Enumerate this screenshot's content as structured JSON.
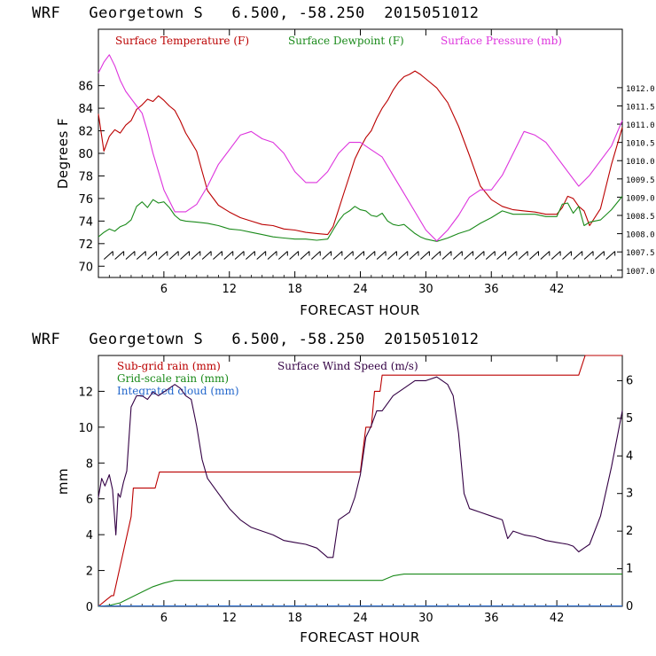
{
  "colors": {
    "temperature": "#bb0000",
    "dewpoint": "#1a8a1a",
    "pressure": "#dd33dd",
    "subgrid_rain": "#bb0000",
    "gridscale_rain": "#1a8a1a",
    "integrated_cloud": "#2266cc",
    "wind_speed": "#330044",
    "wind_barbs": "#000000"
  },
  "chart_data": [
    {
      "type": "line",
      "title": "WRF   Georgetown S   6.500, -58.250  2015051012",
      "xlabel": "FORECAST HOUR",
      "ylabel": "Degrees F",
      "xlim": [
        0,
        48
      ],
      "ylim": [
        69,
        91
      ],
      "xticks": [
        6,
        12,
        18,
        24,
        30,
        36,
        42
      ],
      "yticks": [
        70,
        72,
        74,
        76,
        78,
        80,
        82,
        84,
        86
      ],
      "y2lim": [
        1006.8,
        1013.6
      ],
      "y2ticks": [
        "1007.0",
        "1007.5",
        "1008.0",
        "1008.5",
        "1009.0",
        "1009.5",
        "1010.0",
        "1010.5",
        "1011.0",
        "1011.5",
        "1012.0"
      ],
      "legend": [
        "Surface Temperature (F)",
        "Surface Dewpoint (F)",
        "Surface Pressure (mb)"
      ],
      "wind_barbs_row_y": 71,
      "series": [
        {
          "name": "Surface Temperature (F)",
          "axis": "left",
          "x": [
            0,
            0.5,
            1,
            1.5,
            2,
            2.5,
            3,
            3.5,
            4,
            4.5,
            5,
            5.5,
            6,
            6.5,
            7,
            7.5,
            8,
            8.5,
            9,
            9.5,
            10,
            11,
            12,
            13,
            14,
            15,
            16,
            17,
            18,
            19,
            20,
            21,
            21.5,
            22,
            22.5,
            23,
            23.5,
            24,
            24.5,
            25,
            25.5,
            26,
            26.5,
            27,
            27.5,
            28,
            28.5,
            29,
            29.5,
            30,
            31,
            32,
            33,
            34,
            35,
            36,
            37,
            38,
            39,
            40,
            41,
            42,
            42.5,
            43,
            43.5,
            44,
            44.5,
            45,
            46,
            47,
            48
          ],
          "y": [
            83.5,
            80.2,
            81.5,
            82.1,
            81.8,
            82.5,
            82.9,
            83.9,
            84.3,
            84.8,
            84.6,
            85.1,
            84.7,
            84.2,
            83.8,
            82.9,
            81.8,
            81.0,
            80.2,
            78.4,
            76.7,
            75.4,
            74.8,
            74.3,
            74.0,
            73.7,
            73.6,
            73.3,
            73.2,
            73.0,
            72.9,
            72.8,
            73.5,
            75.0,
            76.5,
            78.0,
            79.5,
            80.5,
            81.4,
            82.0,
            83.1,
            84.0,
            84.7,
            85.6,
            86.3,
            86.8,
            87.0,
            87.3,
            87.0,
            86.6,
            85.8,
            84.5,
            82.4,
            79.8,
            77.1,
            75.9,
            75.3,
            75.0,
            74.9,
            74.8,
            74.6,
            74.6,
            75.2,
            76.2,
            76.0,
            75.3,
            74.9,
            73.6,
            75.1,
            79.0,
            82.3
          ]
        },
        {
          "name": "Surface Dewpoint (F)",
          "axis": "left",
          "x": [
            0,
            0.5,
            1,
            1.5,
            2,
            2.5,
            3,
            3.5,
            4,
            4.5,
            5,
            5.5,
            6,
            6.5,
            7,
            7.5,
            8,
            9,
            10,
            11,
            12,
            13,
            14,
            15,
            16,
            17,
            18,
            19,
            20,
            21,
            21.5,
            22,
            22.5,
            23,
            23.5,
            24,
            24.5,
            25,
            25.5,
            26,
            26.5,
            27,
            27.5,
            28,
            28.5,
            29,
            29.5,
            30,
            31,
            32,
            33,
            34,
            35,
            36,
            37,
            38,
            39,
            40,
            41,
            42,
            42.5,
            43,
            43.5,
            44,
            44.5,
            45,
            46,
            47,
            48
          ],
          "y": [
            72.6,
            73.0,
            73.3,
            73.1,
            73.5,
            73.7,
            74.1,
            75.3,
            75.7,
            75.2,
            75.9,
            75.6,
            75.7,
            75.2,
            74.5,
            74.1,
            74.0,
            73.9,
            73.8,
            73.6,
            73.3,
            73.2,
            73.0,
            72.8,
            72.6,
            72.5,
            72.4,
            72.4,
            72.3,
            72.4,
            73.2,
            74.0,
            74.6,
            74.9,
            75.3,
            75.0,
            74.9,
            74.5,
            74.4,
            74.7,
            74.0,
            73.7,
            73.6,
            73.7,
            73.3,
            72.9,
            72.6,
            72.4,
            72.2,
            72.5,
            72.9,
            73.2,
            73.8,
            74.3,
            74.9,
            74.6,
            74.6,
            74.6,
            74.4,
            74.4,
            75.5,
            75.6,
            74.7,
            75.3,
            73.6,
            73.9,
            74.1,
            75.0,
            76.2
          ]
        },
        {
          "name": "Surface Pressure (mb)",
          "axis": "right",
          "x": [
            0,
            0.5,
            1,
            1.5,
            2,
            2.5,
            3,
            3.5,
            4,
            4.5,
            5,
            6,
            7,
            8,
            9,
            10,
            11,
            12,
            13,
            14,
            15,
            16,
            17,
            18,
            19,
            20,
            21,
            22,
            23,
            24,
            25,
            26,
            27,
            28,
            29,
            30,
            31,
            32,
            33,
            34,
            35,
            36,
            37,
            38,
            39,
            40,
            41,
            42,
            43,
            44,
            45,
            46,
            47,
            48
          ],
          "y": [
            1012.4,
            1012.7,
            1012.9,
            1012.6,
            1012.2,
            1011.9,
            1011.7,
            1011.5,
            1011.3,
            1010.8,
            1010.2,
            1009.2,
            1008.6,
            1008.6,
            1008.8,
            1009.3,
            1009.9,
            1010.3,
            1010.7,
            1010.8,
            1010.6,
            1010.5,
            1010.2,
            1009.7,
            1009.4,
            1009.4,
            1009.7,
            1010.2,
            1010.5,
            1010.5,
            1010.3,
            1010.1,
            1009.6,
            1009.1,
            1008.6,
            1008.1,
            1007.8,
            1008.1,
            1008.5,
            1009.0,
            1009.2,
            1009.2,
            1009.6,
            1010.2,
            1010.8,
            1010.7,
            1010.5,
            1010.1,
            1009.7,
            1009.3,
            1009.6,
            1010.0,
            1010.4,
            1011.1
          ]
        }
      ]
    },
    {
      "type": "line",
      "title": "WRF   Georgetown S   6.500, -58.250  2015051012",
      "xlabel": "FORECAST HOUR",
      "ylabel": "mm",
      "xlim": [
        0,
        48
      ],
      "ylim": [
        0,
        14
      ],
      "xticks": [
        6,
        12,
        18,
        24,
        30,
        36,
        42
      ],
      "yticks": [
        0,
        2,
        4,
        6,
        8,
        10,
        12
      ],
      "y2lim": [
        0,
        6.67
      ],
      "y2ticks": [
        0,
        1,
        2,
        3,
        4,
        5,
        6
      ],
      "legend": [
        "Sub-grid rain (mm)",
        "Surface Wind Speed (m/s)",
        "Grid-scale rain (mm)",
        "Integrated cloud (mm)"
      ],
      "series": [
        {
          "name": "Sub-grid rain (mm)",
          "axis": "left",
          "x": [
            0,
            0.6,
            1.2,
            1.4,
            3.0,
            3.2,
            5.2,
            5.6,
            24.0,
            24.5,
            25.0,
            25.3,
            25.8,
            26.0,
            26.4,
            44.0,
            44.6,
            48
          ],
          "y": [
            0,
            0.3,
            0.6,
            0.6,
            5.0,
            6.6,
            6.6,
            7.5,
            7.5,
            10.0,
            10.0,
            12.0,
            12.0,
            12.9,
            12.9,
            12.9,
            14.0,
            14.0
          ]
        },
        {
          "name": "Grid-scale rain (mm)",
          "axis": "left",
          "x": [
            0,
            1,
            2,
            3,
            4,
            5,
            6,
            7,
            8,
            12,
            18,
            24,
            26,
            27,
            28,
            36,
            42,
            48
          ],
          "y": [
            0,
            0.05,
            0.2,
            0.5,
            0.8,
            1.1,
            1.3,
            1.45,
            1.45,
            1.45,
            1.45,
            1.45,
            1.45,
            1.7,
            1.8,
            1.8,
            1.8,
            1.8
          ]
        },
        {
          "name": "Integrated cloud (mm)",
          "axis": "left",
          "x": [
            0,
            6,
            12,
            18,
            24,
            30,
            36,
            42,
            48
          ],
          "y": [
            0.02,
            0.02,
            0.02,
            0.02,
            0.02,
            0.02,
            0.02,
            0.02,
            0.02
          ]
        },
        {
          "name": "Surface Wind Speed (m/s)",
          "axis": "right",
          "x": [
            0,
            0.3,
            0.6,
            1,
            1.3,
            1.6,
            1.8,
            2.0,
            2.3,
            2.6,
            3,
            3.5,
            4,
            4.5,
            5,
            5.5,
            6,
            6.5,
            7,
            7.5,
            8,
            8.5,
            9,
            9.5,
            10,
            11,
            12,
            13,
            14,
            15,
            16,
            17,
            18,
            19,
            20,
            21,
            21.5,
            22,
            22.5,
            23,
            23.5,
            24,
            24.5,
            25,
            25.5,
            26,
            26.5,
            27,
            28,
            29,
            30,
            31,
            32,
            32.5,
            33,
            33.5,
            34,
            35,
            36,
            37,
            37.5,
            38,
            39,
            40,
            41,
            42,
            43,
            43.5,
            44,
            44.5,
            45,
            46,
            47,
            48
          ],
          "y": [
            2.9,
            3.4,
            3.2,
            3.5,
            3.1,
            1.9,
            3.0,
            2.9,
            3.3,
            3.6,
            5.3,
            5.6,
            5.6,
            5.5,
            5.7,
            5.6,
            5.7,
            5.8,
            5.9,
            5.8,
            5.6,
            5.5,
            4.8,
            3.9,
            3.4,
            3.0,
            2.6,
            2.3,
            2.1,
            2.0,
            1.9,
            1.75,
            1.7,
            1.65,
            1.55,
            1.3,
            1.3,
            2.3,
            2.4,
            2.5,
            2.9,
            3.5,
            4.5,
            4.8,
            5.2,
            5.2,
            5.4,
            5.6,
            5.8,
            6.0,
            6.0,
            6.1,
            5.9,
            5.6,
            4.6,
            3.0,
            2.6,
            2.5,
            2.4,
            2.3,
            1.8,
            2.0,
            1.9,
            1.85,
            1.75,
            1.7,
            1.65,
            1.6,
            1.45,
            1.55,
            1.65,
            2.4,
            3.7,
            5.2
          ]
        }
      ]
    }
  ]
}
